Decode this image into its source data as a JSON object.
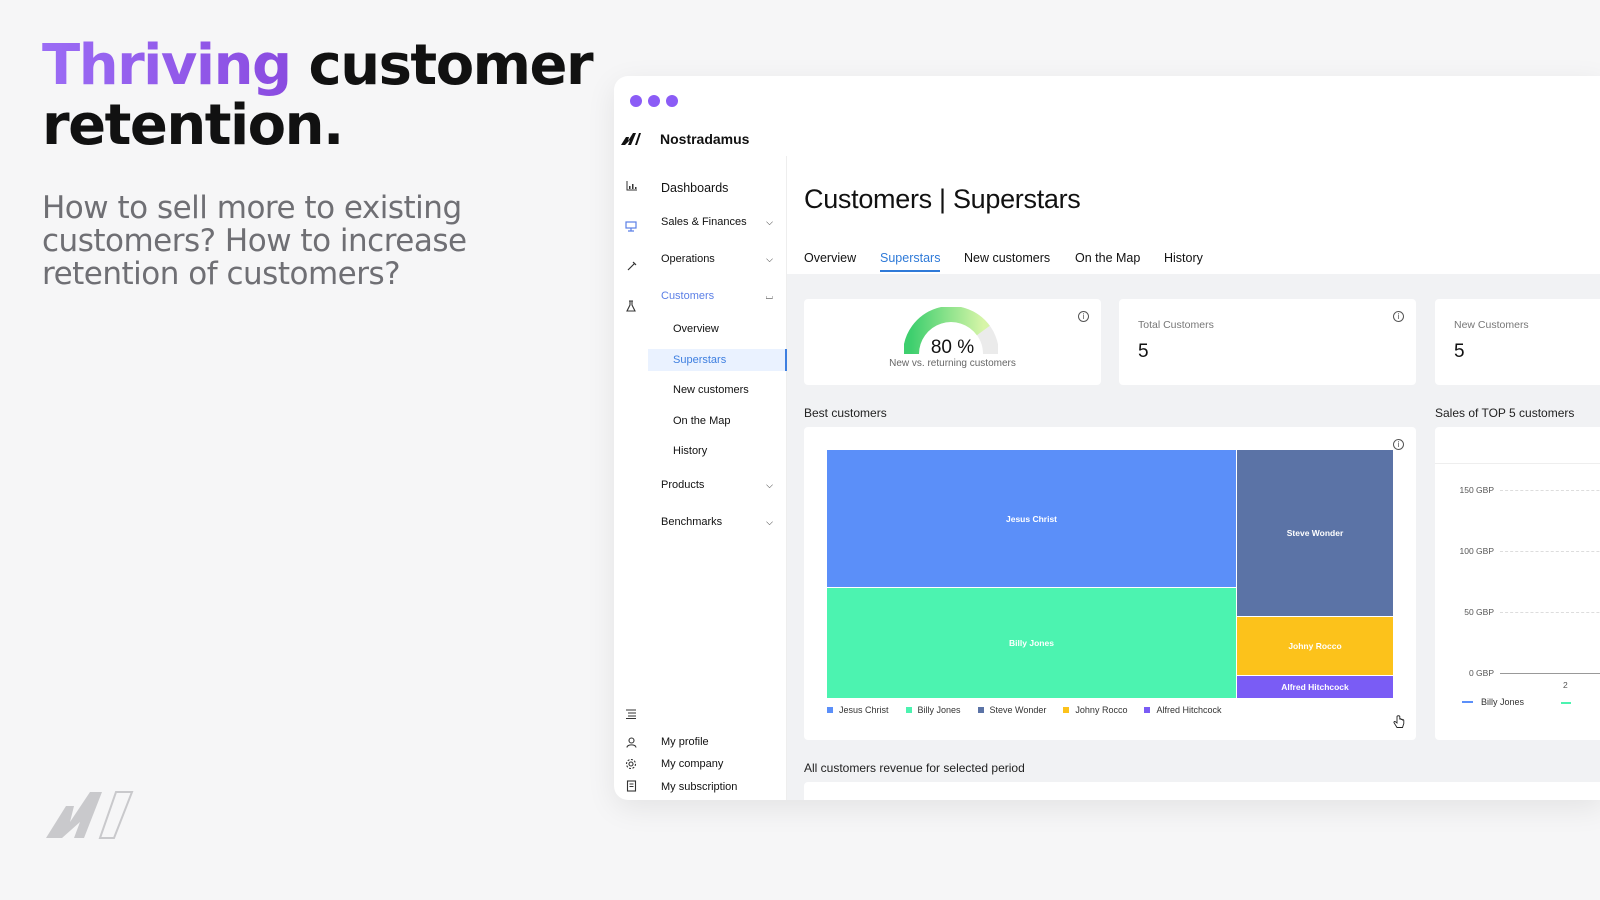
{
  "hero": {
    "headline_accent": "Thriving",
    "headline_rest": " customer retention.",
    "subline": "How to sell more to existing customers? How to increase retention of customers?"
  },
  "colors": {
    "accent_purple": "#8b5cf6",
    "active_blue": "#2f7ad8",
    "treemap": [
      "#5b8ff9",
      "#4cf3b0",
      "#5b73a6",
      "#fcc21b",
      "#7a5cf5"
    ]
  },
  "app": {
    "name": "Nostradamus",
    "logo_icon": "nostradamus-logo-icon"
  },
  "rail_icons": [
    "bar-chart-icon",
    "presentation-icon",
    "tools-icon",
    "flask-icon",
    "menu-icon",
    "user-icon",
    "gear-icon",
    "document-icon"
  ],
  "sidebar": {
    "dashboards": "Dashboards",
    "sales": "Sales & Finances",
    "operations": "Operations",
    "customers": "Customers",
    "customers_sub": [
      "Overview",
      "Superstars",
      "New customers",
      "On the Map",
      "History"
    ],
    "products": "Products",
    "benchmarks": "Benchmarks",
    "bottom": [
      "My profile",
      "My company",
      "My subscription"
    ]
  },
  "page": {
    "title": "Customers | Superstars",
    "tabs": [
      "Overview",
      "Superstars",
      "New customers",
      "On the Map",
      "History"
    ],
    "active_tab": "Superstars"
  },
  "gauge": {
    "value": 80,
    "value_text": "80 %",
    "label": "New vs. returning customers"
  },
  "kpis": {
    "total_label": "Total Customers",
    "total_value": "5",
    "new_label": "New Customers",
    "new_value": "5"
  },
  "best_customers": {
    "label": "Best customers",
    "cells": [
      "Jesus Christ",
      "Billy Jones",
      "Steve Wonder",
      "Johny Rocco",
      "Alfred Hitchcock"
    ],
    "legend": [
      "Jesus Christ",
      "Billy Jones",
      "Steve Wonder",
      "Johny Rocco",
      "Alfred Hitchcock"
    ]
  },
  "top5": {
    "label": "Sales of TOP 5 customers",
    "ticks": [
      "150 GBP",
      "100 GBP",
      "50 GBP",
      "0 GBP"
    ],
    "tick_fragment": "2",
    "legend": [
      "Billy Jones"
    ]
  },
  "revenue_section": {
    "label": "All customers revenue for selected period"
  }
}
